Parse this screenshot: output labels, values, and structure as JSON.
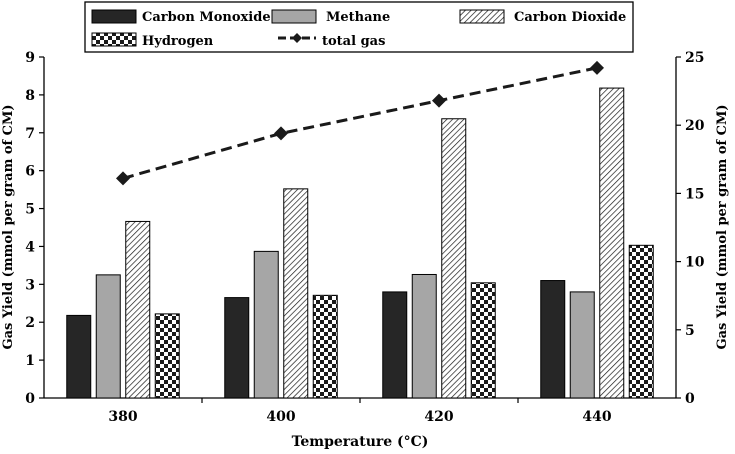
{
  "chart_data": {
    "type": "bar",
    "categories": [
      "380",
      "400",
      "420",
      "440"
    ],
    "xlabel": "Temperature (°C)",
    "ylabel_left": "Gas Yield (mmol per  gram of CM)",
    "ylabel_right": "Gas Yield (mmol per  gram of CM)",
    "ylim_left": [
      0,
      9
    ],
    "yticks_left": [
      "0",
      "1",
      "2",
      "3",
      "4",
      "5",
      "6",
      "7",
      "8",
      "9"
    ],
    "ylim_right": [
      0,
      25
    ],
    "yticks_right": [
      "0",
      "5",
      "10",
      "15",
      "20",
      "25"
    ],
    "grid": false,
    "legend_position": "top",
    "series": [
      {
        "name": "Carbon Monoxide",
        "axis": "left",
        "kind": "bar",
        "pattern": "solid-black",
        "color": "#262626",
        "values": [
          2.18,
          2.65,
          2.8,
          3.1
        ]
      },
      {
        "name": "Methane",
        "axis": "left",
        "kind": "bar",
        "pattern": "solid-gray",
        "color": "#a6a6a6",
        "values": [
          3.25,
          3.87,
          3.26,
          2.8
        ]
      },
      {
        "name": "Carbon Dioxide",
        "axis": "left",
        "kind": "bar",
        "pattern": "diagonal-hatch",
        "color": "#1a1a1a",
        "values": [
          4.66,
          5.52,
          7.37,
          8.18
        ]
      },
      {
        "name": "Hydrogen",
        "axis": "left",
        "kind": "bar",
        "pattern": "checkerboard",
        "color": "#1a1a1a",
        "values": [
          2.22,
          2.71,
          3.04,
          4.03
        ]
      },
      {
        "name": "total gas",
        "axis": "right",
        "kind": "line",
        "style": "dashed-diamond",
        "color": "#1a1a1a",
        "values": [
          16.1,
          19.4,
          21.8,
          24.2
        ]
      }
    ]
  }
}
